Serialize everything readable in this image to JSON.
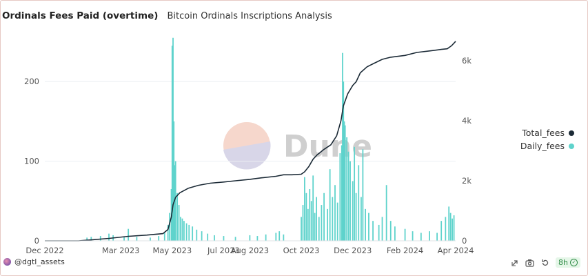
{
  "header": {
    "title": "Ordinals Fees Paid (overtime)",
    "subtitle": "Bitcoin Ordinals Inscriptions Analysis"
  },
  "colors": {
    "daily": "#5fd3cc",
    "total": "#1b2a36",
    "grid": "#eceff2",
    "watermark_text": "#cfcfcf"
  },
  "watermark": {
    "text": "Dune"
  },
  "footer": {
    "author": "@dgtl_assets",
    "refresh_badge": "8h",
    "icons": [
      "share-icon",
      "camera-icon",
      "refresh-icon",
      "check-circle-icon"
    ]
  },
  "chart_data": {
    "type": "bar+line",
    "x_range": [
      "2022-12-01",
      "2024-04-01"
    ],
    "x_ticks": [
      "Dec 2022",
      "Mar 2023",
      "May 2023",
      "Jul 2023",
      "Aug 2023",
      "Oct 2023",
      "Dec 2023",
      "Feb 2024",
      "Apr 2024"
    ],
    "x_tick_dates": [
      "2022-12-01",
      "2023-03-01",
      "2023-05-01",
      "2023-07-01",
      "2023-08-01",
      "2023-10-01",
      "2023-12-01",
      "2024-02-01",
      "2024-04-01"
    ],
    "y_left": {
      "ticks": [
        "0",
        "100",
        "200"
      ],
      "tick_values": [
        0,
        100,
        200
      ],
      "range": [
        0,
        260
      ]
    },
    "y_right": {
      "ticks": [
        "0",
        "2k",
        "4k",
        "6k"
      ],
      "tick_values": [
        0,
        2000,
        4000,
        6000
      ],
      "range": [
        0,
        6900
      ]
    },
    "series": [
      {
        "name": "Daily_fees",
        "axis": "left",
        "kind": "bar",
        "points": [
          [
            "2023-01-20",
            4
          ],
          [
            "2023-01-25",
            5
          ],
          [
            "2023-02-05",
            6
          ],
          [
            "2023-02-15",
            9
          ],
          [
            "2023-02-20",
            7
          ],
          [
            "2023-03-05",
            5
          ],
          [
            "2023-03-10",
            15
          ],
          [
            "2023-03-20",
            5
          ],
          [
            "2023-04-05",
            4
          ],
          [
            "2023-04-15",
            6
          ],
          [
            "2023-04-22",
            10
          ],
          [
            "2023-04-26",
            20
          ],
          [
            "2023-04-28",
            35
          ],
          [
            "2023-04-30",
            65
          ],
          [
            "2023-05-01",
            245
          ],
          [
            "2023-05-02",
            255
          ],
          [
            "2023-05-03",
            150
          ],
          [
            "2023-05-04",
            95
          ],
          [
            "2023-05-05",
            100
          ],
          [
            "2023-05-07",
            60
          ],
          [
            "2023-05-09",
            45
          ],
          [
            "2023-05-11",
            30
          ],
          [
            "2023-05-13",
            28
          ],
          [
            "2023-05-15",
            25
          ],
          [
            "2023-05-18",
            22
          ],
          [
            "2023-05-21",
            20
          ],
          [
            "2023-05-25",
            18
          ],
          [
            "2023-05-30",
            14
          ],
          [
            "2023-06-05",
            12
          ],
          [
            "2023-06-12",
            9
          ],
          [
            "2023-06-20",
            7
          ],
          [
            "2023-07-01",
            6
          ],
          [
            "2023-07-15",
            5
          ],
          [
            "2023-08-01",
            7
          ],
          [
            "2023-08-10",
            6
          ],
          [
            "2023-08-20",
            8
          ],
          [
            "2023-09-01",
            10
          ],
          [
            "2023-09-05",
            12
          ],
          [
            "2023-09-10",
            8
          ],
          [
            "2023-10-01",
            30
          ],
          [
            "2023-10-03",
            45
          ],
          [
            "2023-10-05",
            80
          ],
          [
            "2023-10-07",
            60
          ],
          [
            "2023-10-09",
            40
          ],
          [
            "2023-10-11",
            65
          ],
          [
            "2023-10-13",
            50
          ],
          [
            "2023-10-15",
            82
          ],
          [
            "2023-10-17",
            35
          ],
          [
            "2023-10-19",
            55
          ],
          [
            "2023-10-22",
            30
          ],
          [
            "2023-10-25",
            45
          ],
          [
            "2023-10-28",
            60
          ],
          [
            "2023-11-01",
            40
          ],
          [
            "2023-11-04",
            90
          ],
          [
            "2023-11-07",
            55
          ],
          [
            "2023-11-10",
            70
          ],
          [
            "2023-11-13",
            48
          ],
          [
            "2023-11-16",
            110
          ],
          [
            "2023-11-18",
            120
          ],
          [
            "2023-11-19",
            236
          ],
          [
            "2023-11-20",
            200
          ],
          [
            "2023-11-21",
            150
          ],
          [
            "2023-11-22",
            145
          ],
          [
            "2023-11-24",
            130
          ],
          [
            "2023-11-26",
            112
          ],
          [
            "2023-11-28",
            100
          ],
          [
            "2023-12-01",
            75
          ],
          [
            "2023-12-03",
            118
          ],
          [
            "2023-12-05",
            60
          ],
          [
            "2023-12-08",
            95
          ],
          [
            "2023-12-11",
            55
          ],
          [
            "2023-12-13",
            115
          ],
          [
            "2023-12-16",
            40
          ],
          [
            "2023-12-20",
            35
          ],
          [
            "2023-12-25",
            25
          ],
          [
            "2024-01-01",
            20
          ],
          [
            "2024-01-05",
            30
          ],
          [
            "2024-01-10",
            70
          ],
          [
            "2024-01-15",
            25
          ],
          [
            "2024-01-20",
            18
          ],
          [
            "2024-02-01",
            15
          ],
          [
            "2024-02-10",
            12
          ],
          [
            "2024-02-20",
            10
          ],
          [
            "2024-03-01",
            12
          ],
          [
            "2024-03-10",
            10
          ],
          [
            "2024-03-15",
            25
          ],
          [
            "2024-03-20",
            30
          ],
          [
            "2024-03-24",
            43
          ],
          [
            "2024-03-26",
            35
          ],
          [
            "2024-03-28",
            28
          ],
          [
            "2024-03-30",
            32
          ]
        ]
      },
      {
        "name": "Total_fees",
        "axis": "right",
        "kind": "line",
        "points": [
          [
            "2022-12-01",
            0
          ],
          [
            "2023-01-10",
            0
          ],
          [
            "2023-01-20",
            20
          ],
          [
            "2023-02-15",
            80
          ],
          [
            "2023-03-10",
            150
          ],
          [
            "2023-04-01",
            190
          ],
          [
            "2023-04-20",
            240
          ],
          [
            "2023-04-26",
            380
          ],
          [
            "2023-04-30",
            800
          ],
          [
            "2023-05-02",
            1200
          ],
          [
            "2023-05-05",
            1450
          ],
          [
            "2023-05-10",
            1600
          ],
          [
            "2023-05-20",
            1750
          ],
          [
            "2023-06-01",
            1850
          ],
          [
            "2023-06-15",
            1920
          ],
          [
            "2023-07-01",
            1960
          ],
          [
            "2023-07-15",
            2000
          ],
          [
            "2023-08-01",
            2050
          ],
          [
            "2023-08-15",
            2100
          ],
          [
            "2023-09-01",
            2150
          ],
          [
            "2023-09-10",
            2200
          ],
          [
            "2023-09-20",
            2200
          ],
          [
            "2023-10-01",
            2220
          ],
          [
            "2023-10-05",
            2300
          ],
          [
            "2023-10-10",
            2480
          ],
          [
            "2023-10-15",
            2720
          ],
          [
            "2023-10-20",
            2870
          ],
          [
            "2023-10-28",
            3050
          ],
          [
            "2023-11-05",
            3200
          ],
          [
            "2023-11-12",
            3500
          ],
          [
            "2023-11-17",
            4000
          ],
          [
            "2023-11-20",
            4500
          ],
          [
            "2023-11-25",
            4900
          ],
          [
            "2023-12-01",
            5180
          ],
          [
            "2023-12-05",
            5300
          ],
          [
            "2023-12-10",
            5600
          ],
          [
            "2023-12-18",
            5800
          ],
          [
            "2023-12-25",
            5900
          ],
          [
            "2024-01-05",
            6050
          ],
          [
            "2024-01-15",
            6120
          ],
          [
            "2024-02-01",
            6180
          ],
          [
            "2024-02-15",
            6280
          ],
          [
            "2024-03-01",
            6330
          ],
          [
            "2024-03-15",
            6380
          ],
          [
            "2024-03-22",
            6400
          ],
          [
            "2024-03-27",
            6500
          ],
          [
            "2024-04-01",
            6650
          ]
        ]
      }
    ],
    "legend_position": "right",
    "grid": true
  }
}
